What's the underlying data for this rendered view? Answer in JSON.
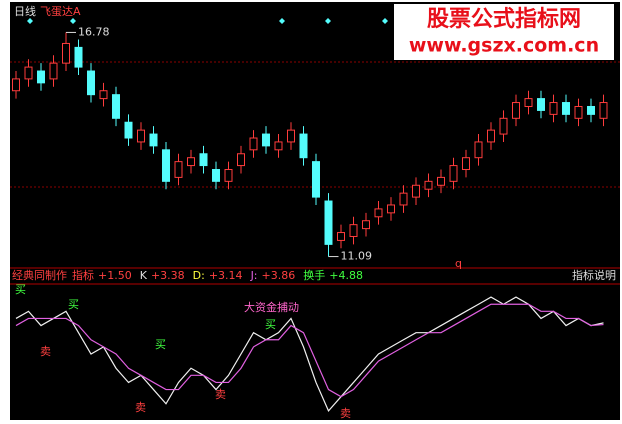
{
  "chart_data": [
    {
      "type": "candlestick",
      "period_label": "日线",
      "indicator_name": "飞蛋达A",
      "marker": "q",
      "open": [
        15.3,
        15.6,
        15.8,
        15.6,
        16.0,
        16.4,
        15.8,
        15.1,
        15.2,
        14.5,
        14.0,
        14.2,
        13.8,
        13.1,
        13.4,
        13.7,
        13.3,
        13.0,
        13.4,
        13.8,
        14.2,
        13.8,
        14.0,
        14.2,
        13.5,
        12.5,
        11.5,
        11.6,
        11.8,
        12.1,
        12.2,
        12.4,
        12.6,
        12.8,
        12.9,
        13.0,
        13.3,
        13.6,
        14.0,
        14.2,
        14.6,
        14.9,
        15.1,
        14.7,
        15.0,
        14.6,
        14.9,
        14.6
      ],
      "high": [
        15.8,
        16.1,
        16.0,
        16.2,
        16.78,
        16.6,
        16.0,
        15.5,
        15.4,
        14.7,
        14.5,
        14.4,
        14.0,
        13.7,
        13.8,
        13.9,
        13.5,
        13.5,
        13.9,
        14.3,
        14.4,
        14.2,
        14.5,
        14.4,
        13.7,
        12.7,
        11.9,
        12.1,
        12.2,
        12.5,
        12.6,
        12.9,
        13.1,
        13.2,
        13.3,
        13.6,
        13.8,
        14.2,
        14.5,
        14.8,
        15.2,
        15.3,
        15.3,
        15.2,
        15.2,
        15.1,
        15.1,
        15.2
      ],
      "low": [
        15.1,
        15.4,
        15.3,
        15.4,
        15.8,
        15.7,
        15.0,
        14.9,
        14.4,
        13.9,
        13.8,
        13.7,
        12.8,
        12.9,
        13.2,
        13.2,
        12.8,
        12.8,
        13.2,
        13.6,
        13.7,
        13.6,
        13.8,
        13.4,
        12.4,
        11.09,
        11.3,
        11.4,
        11.6,
        11.9,
        12.0,
        12.2,
        12.4,
        12.6,
        12.7,
        12.8,
        13.1,
        13.4,
        13.8,
        14.0,
        14.4,
        14.7,
        14.6,
        14.5,
        14.5,
        14.4,
        14.5,
        14.4
      ],
      "close": [
        15.6,
        15.9,
        15.5,
        16.0,
        16.5,
        15.9,
        15.2,
        15.3,
        14.6,
        14.1,
        14.3,
        13.9,
        13.0,
        13.5,
        13.6,
        13.4,
        13.0,
        13.3,
        13.7,
        14.1,
        13.9,
        14.0,
        14.3,
        13.6,
        12.6,
        11.4,
        11.7,
        11.9,
        12.0,
        12.3,
        12.4,
        12.7,
        12.9,
        13.0,
        13.1,
        13.4,
        13.6,
        14.0,
        14.3,
        14.6,
        15.0,
        15.1,
        14.8,
        15.0,
        14.7,
        14.9,
        14.7,
        15.0
      ],
      "ylim": [
        10.8,
        17.4
      ],
      "up_color": "#ff3c3c",
      "down_color": "#54fcfc"
    },
    {
      "type": "line",
      "title": "经典同制作",
      "help": "指标说明",
      "readouts": [
        {
          "name": "指标",
          "value_label": "+1.50"
        },
        {
          "name": "K",
          "value_label": "+3.38"
        },
        {
          "name": "D:",
          "value_label": "+3.14"
        },
        {
          "name": "J:",
          "value_label": "+3.86"
        },
        {
          "name": "换手",
          "value_label": "+4.88"
        }
      ],
      "series": [
        {
          "color": "#f0f0f0",
          "values": [
            4,
            5,
            3,
            4,
            5,
            2,
            -1,
            0,
            -3,
            -5,
            -4,
            -6,
            -8,
            -5,
            -3,
            -4,
            -6,
            -4,
            -1,
            2,
            1,
            2,
            4,
            0,
            -5,
            -9,
            -7,
            -5,
            -3,
            -1,
            0,
            1,
            2,
            2,
            3,
            4,
            5,
            6,
            7,
            6,
            7,
            6,
            4,
            5,
            3,
            4,
            3,
            3.38
          ]
        },
        {
          "color": "#e060e0",
          "values": [
            3,
            4,
            4,
            4,
            4,
            3,
            1,
            0,
            -1,
            -3,
            -4,
            -5,
            -6,
            -6,
            -4,
            -4,
            -5,
            -5,
            -3,
            0,
            1,
            1,
            3,
            2,
            -2,
            -6,
            -7,
            -6,
            -4,
            -2,
            -1,
            0,
            1,
            2,
            2,
            3,
            4,
            5,
            6,
            6,
            6,
            6,
            5,
            5,
            4,
            4,
            3,
            3.14
          ]
        }
      ],
      "ylim": [
        -10,
        8
      ],
      "signals": [
        "买",
        "买",
        "买",
        "买",
        "卖",
        "卖",
        "卖",
        "卖"
      ],
      "event": "大资金捕动"
    }
  ],
  "watermark": {
    "title": "股票公式指标网",
    "url": "www.gszx.com.cn"
  }
}
